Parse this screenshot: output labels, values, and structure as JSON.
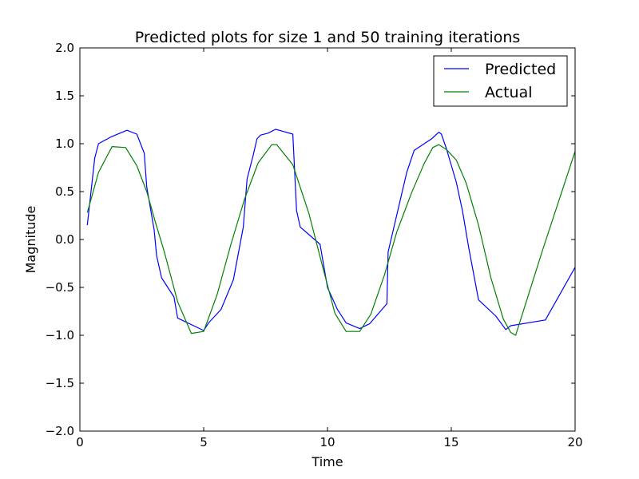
{
  "chart_data": {
    "type": "line",
    "title": "Predicted plots for size 1 and 50 training iterations",
    "xlabel": "Time",
    "ylabel": "Magnitude",
    "xlim": [
      0,
      20
    ],
    "ylim": [
      -2.0,
      2.0
    ],
    "xticks": [
      "0",
      "5",
      "10",
      "15",
      "20"
    ],
    "yticks": [
      "2.0",
      "1.5",
      "1.0",
      "0.5",
      "0.0",
      "−0.5",
      "−1.0",
      "−1.5",
      "−2.0"
    ],
    "grid": false,
    "legend_position": "top-right",
    "series": [
      {
        "name": "Predicted",
        "color": "#0000ff",
        "x": [
          0.3,
          0.6,
          0.75,
          1.25,
          1.9,
          2.3,
          2.6,
          2.7,
          3.0,
          3.1,
          3.3,
          3.8,
          3.95,
          5.0,
          5.2,
          5.7,
          6.2,
          6.6,
          6.75,
          7.0,
          7.15,
          7.3,
          7.6,
          7.9,
          8.05,
          8.6,
          8.75,
          8.9,
          9.7,
          10.0,
          10.4,
          10.75,
          11.3,
          11.7,
          12.4,
          12.45,
          13.2,
          13.5,
          14.2,
          14.5,
          14.6,
          14.8,
          15.2,
          15.45,
          15.7,
          16.1,
          16.8,
          17.2,
          17.4,
          18.8,
          20.0
        ],
        "y": [
          0.15,
          0.85,
          1.0,
          1.07,
          1.14,
          1.1,
          0.9,
          0.55,
          0.1,
          -0.17,
          -0.4,
          -0.6,
          -0.82,
          -0.95,
          -0.87,
          -0.73,
          -0.42,
          0.13,
          0.63,
          0.88,
          1.05,
          1.09,
          1.11,
          1.15,
          1.14,
          1.1,
          0.3,
          0.13,
          -0.05,
          -0.5,
          -0.73,
          -0.87,
          -0.93,
          -0.88,
          -0.67,
          -0.13,
          0.7,
          0.93,
          1.05,
          1.12,
          1.1,
          0.95,
          0.6,
          0.3,
          -0.08,
          -0.63,
          -0.8,
          -0.94,
          -0.9,
          -0.84,
          -0.29
        ]
      },
      {
        "name": "Actual",
        "color": "#008000",
        "x": [
          0.3,
          0.75,
          1.3,
          1.85,
          2.3,
          2.7,
          3.05,
          3.4,
          3.95,
          4.5,
          5.0,
          5.55,
          6.1,
          6.65,
          7.2,
          7.75,
          7.95,
          8.6,
          9.25,
          9.8,
          10.3,
          10.75,
          11.3,
          11.75,
          12.3,
          12.8,
          13.4,
          13.9,
          14.25,
          14.5,
          14.8,
          15.2,
          15.6,
          16.1,
          16.6,
          17.1,
          17.4,
          17.6,
          18.7,
          20.0
        ],
        "y": [
          0.28,
          0.7,
          0.97,
          0.96,
          0.77,
          0.5,
          0.18,
          -0.12,
          -0.65,
          -0.98,
          -0.96,
          -0.57,
          -0.05,
          0.42,
          0.8,
          0.99,
          0.99,
          0.78,
          0.27,
          -0.28,
          -0.77,
          -0.96,
          -0.96,
          -0.78,
          -0.37,
          0.08,
          0.49,
          0.79,
          0.96,
          0.99,
          0.94,
          0.83,
          0.59,
          0.15,
          -0.4,
          -0.83,
          -0.97,
          -1.0,
          -0.1,
          0.92
        ]
      }
    ]
  }
}
